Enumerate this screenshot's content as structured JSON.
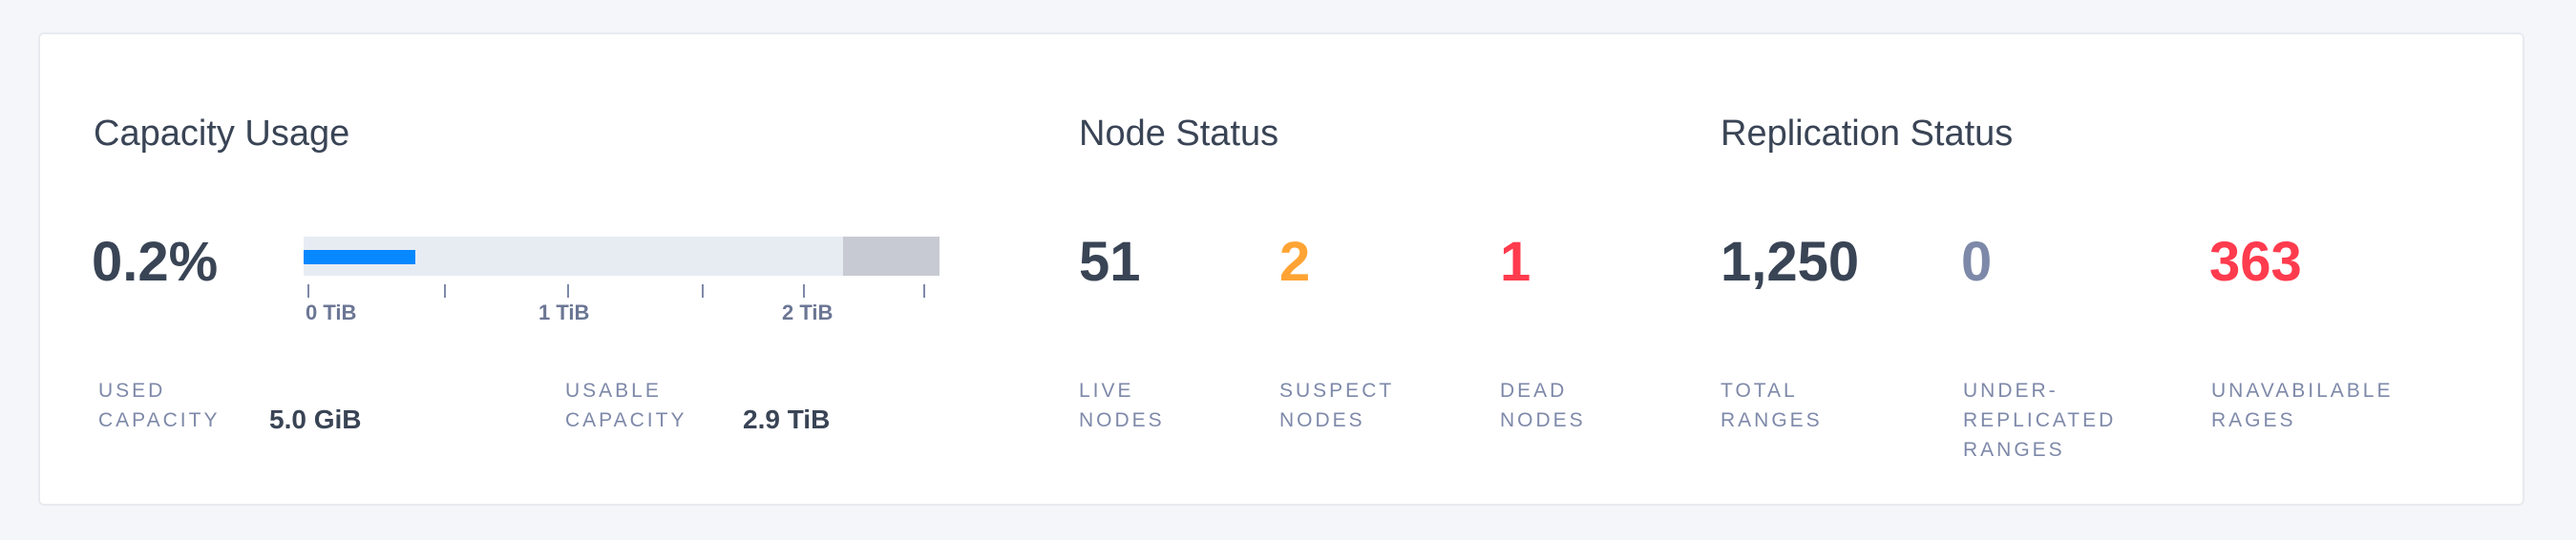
{
  "capacity": {
    "title": "Capacity Usage",
    "percent": "0.2%",
    "bar": {
      "used_color": "#0788ff",
      "track_color": "#e7ecf3",
      "reserved_color": "#c8cad3"
    },
    "ticks": [
      "0 TiB",
      "1 TiB",
      "2 TiB"
    ],
    "used_label_1": "USED",
    "used_label_2": "CAPACITY",
    "used_value": "5.0 GiB",
    "usable_label_1": "USABLE",
    "usable_label_2": "CAPACITY",
    "usable_value": "2.9 TiB"
  },
  "nodes": {
    "title": "Node Status",
    "live": {
      "value": "51",
      "label_1": "LIVE",
      "label_2": "NODES",
      "color": "#394455"
    },
    "suspect": {
      "value": "2",
      "label_1": "SUSPECT",
      "label_2": "NODES",
      "color": "#ffa434"
    },
    "dead": {
      "value": "1",
      "label_1": "DEAD",
      "label_2": "NODES",
      "color": "#ff3b4e"
    }
  },
  "replication": {
    "title": "Replication Status",
    "total": {
      "value": "1,250",
      "label_1": "TOTAL",
      "label_2": "RANGES",
      "color": "#394455"
    },
    "under": {
      "value": "0",
      "label_1": "UNDER-",
      "label_2": "REPLICATED",
      "label_3": "RANGES",
      "color": "#7e89a9"
    },
    "unavailable": {
      "value": "363",
      "label_1": "UNAVABILABLE",
      "label_2": "RAGES",
      "color": "#ff3b4e"
    }
  }
}
